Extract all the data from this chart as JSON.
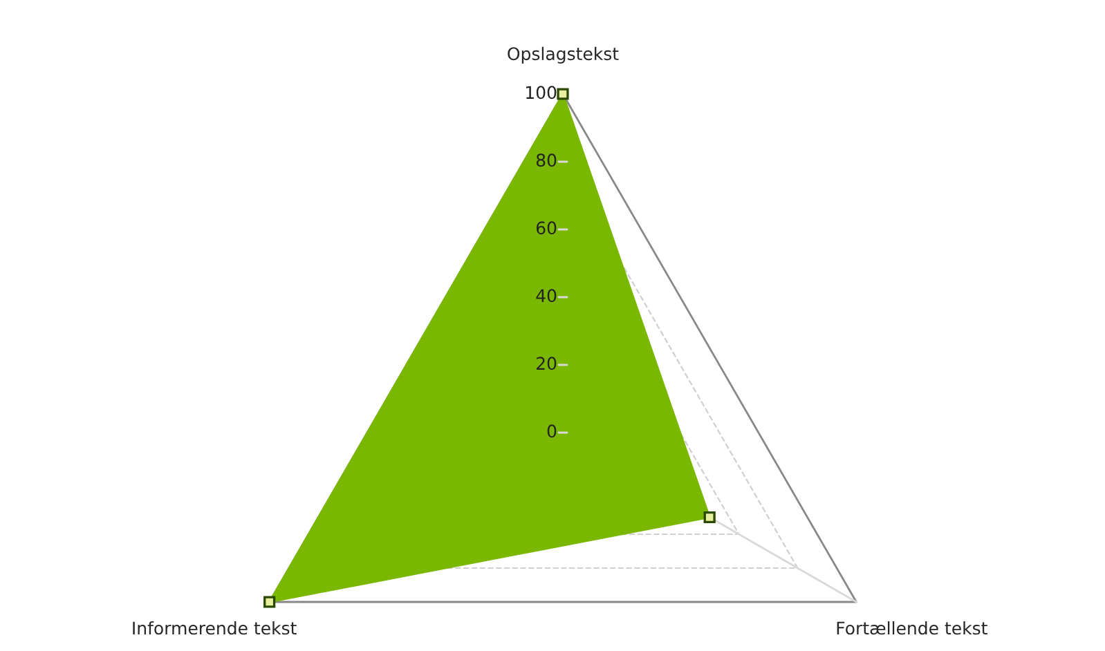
{
  "chart_data": {
    "type": "radar",
    "categories": [
      "Opslagstekst",
      "Fortællende tekst",
      "Informerende tekst"
    ],
    "series": [
      {
        "color": "#7ab800",
        "values": [
          100,
          50,
          100
        ]
      }
    ],
    "ylim": [
      0,
      100
    ],
    "yticks": [
      0,
      20,
      40,
      60,
      80,
      100
    ],
    "grid": true,
    "marker": "square",
    "legend": false
  }
}
